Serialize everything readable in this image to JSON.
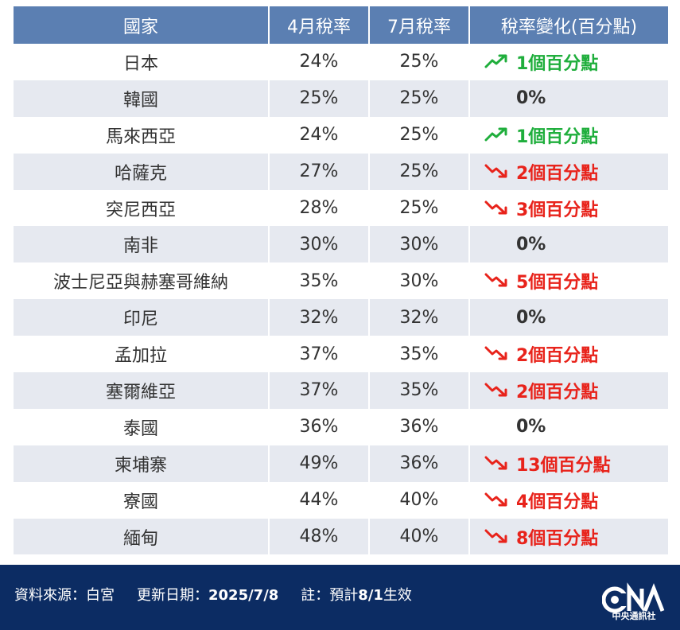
{
  "table": {
    "headers": [
      "國家",
      "4月稅率",
      "7月稅率",
      "稅率變化(百分點)"
    ],
    "rows": [
      {
        "country": "日本",
        "april": "24%",
        "july": "25%",
        "change": "1個百分點",
        "direction": "up"
      },
      {
        "country": "韓國",
        "april": "25%",
        "july": "25%",
        "change": "0%",
        "direction": "flat"
      },
      {
        "country": "馬來西亞",
        "april": "24%",
        "july": "25%",
        "change": "1個百分點",
        "direction": "up"
      },
      {
        "country": "哈薩克",
        "april": "27%",
        "july": "25%",
        "change": "2個百分點",
        "direction": "down"
      },
      {
        "country": "突尼西亞",
        "april": "28%",
        "july": "25%",
        "change": "3個百分點",
        "direction": "down"
      },
      {
        "country": "南非",
        "april": "30%",
        "july": "30%",
        "change": "0%",
        "direction": "flat"
      },
      {
        "country": "波士尼亞與赫塞哥維納",
        "april": "35%",
        "july": "30%",
        "change": "5個百分點",
        "direction": "down"
      },
      {
        "country": "印尼",
        "april": "32%",
        "july": "32%",
        "change": "0%",
        "direction": "flat"
      },
      {
        "country": "孟加拉",
        "april": "37%",
        "july": "35%",
        "change": "2個百分點",
        "direction": "down"
      },
      {
        "country": "塞爾維亞",
        "april": "37%",
        "july": "35%",
        "change": "2個百分點",
        "direction": "down"
      },
      {
        "country": "泰國",
        "april": "36%",
        "july": "36%",
        "change": "0%",
        "direction": "flat"
      },
      {
        "country": "柬埔寨",
        "april": "49%",
        "july": "36%",
        "change": "13個百分點",
        "direction": "down"
      },
      {
        "country": "寮國",
        "april": "44%",
        "july": "40%",
        "change": "4個百分點",
        "direction": "down"
      },
      {
        "country": "緬甸",
        "april": "48%",
        "july": "40%",
        "change": "8個百分點",
        "direction": "down"
      }
    ]
  },
  "footer": {
    "source": "資料來源：白宮",
    "updated_label": "更新日期：",
    "updated_value": "2025/7/8",
    "note_label": "註：預計",
    "note_value": "8/1",
    "note_suffix": "生效",
    "logo_text": "中央通訊社"
  },
  "colors": {
    "header_bg": "#5b7fb2",
    "row_shade": "#e6e9f0",
    "up": "#1fae3c",
    "down": "#e8231b",
    "footer_bg": "#0c2c63"
  },
  "icons": {
    "up": "trend-up-icon",
    "down": "trend-down-icon",
    "logo": "cna-logo"
  }
}
